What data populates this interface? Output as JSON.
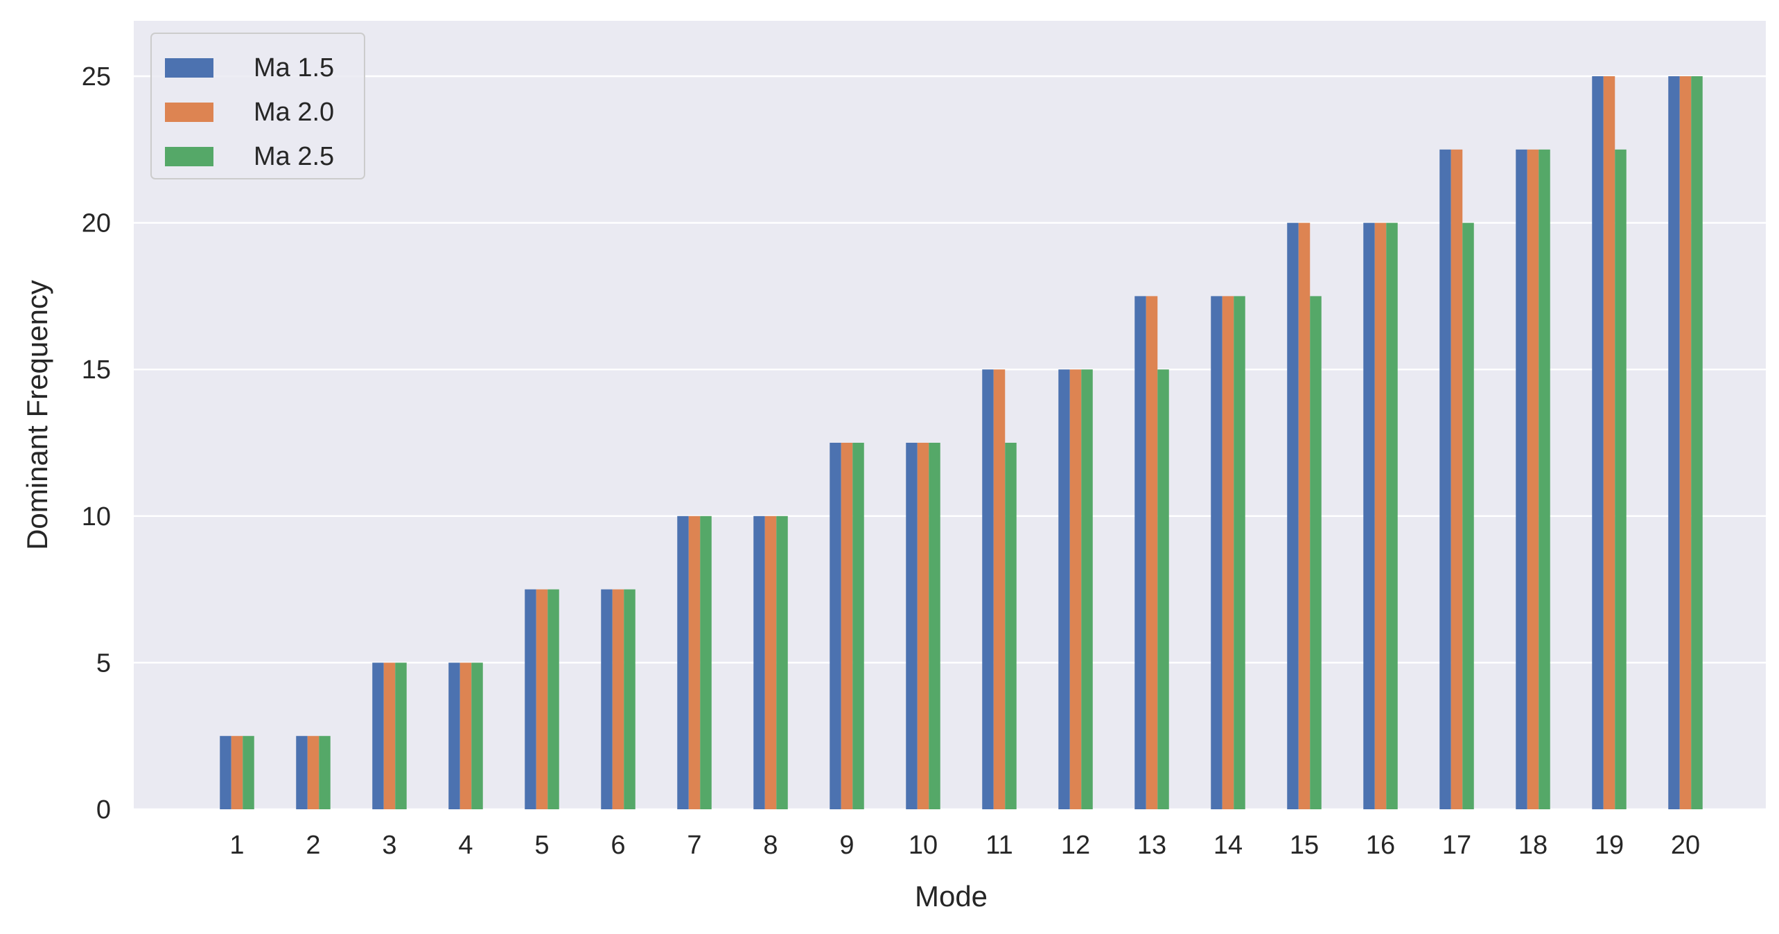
{
  "chart_data": {
    "type": "bar",
    "title": "",
    "xlabel": "Mode",
    "ylabel": "Dominant Frequency",
    "categories": [
      "1",
      "2",
      "3",
      "4",
      "5",
      "6",
      "7",
      "8",
      "9",
      "10",
      "11",
      "12",
      "13",
      "14",
      "15",
      "16",
      "17",
      "18",
      "19",
      "20"
    ],
    "series": [
      {
        "name": "Ma 1.5",
        "color": "#4c72b0",
        "values": [
          2.5,
          2.5,
          5,
          5,
          7.5,
          7.5,
          10,
          10,
          12.5,
          12.5,
          15,
          15,
          17.5,
          17.5,
          20,
          20,
          22.5,
          22.5,
          25,
          25
        ]
      },
      {
        "name": "Ma 2.0",
        "color": "#dd8452",
        "values": [
          2.5,
          2.5,
          5,
          5,
          7.5,
          7.5,
          10,
          10,
          12.5,
          12.5,
          15,
          15,
          17.5,
          17.5,
          20,
          20,
          22.5,
          22.5,
          25,
          25
        ]
      },
      {
        "name": "Ma 2.5",
        "color": "#55a868",
        "values": [
          2.5,
          2.5,
          5,
          5,
          7.5,
          7.5,
          10,
          10,
          12.5,
          12.5,
          12.5,
          15,
          15,
          17.5,
          17.5,
          20,
          20,
          22.5,
          22.5,
          25
        ]
      }
    ],
    "yticks": [
      "0",
      "5",
      "10",
      "15",
      "20",
      "25"
    ],
    "ylim": [
      0,
      26.5
    ],
    "grid": true,
    "legend_position": "top-left",
    "background_color": "#eaeaf2",
    "grid_color": "#ffffff"
  }
}
